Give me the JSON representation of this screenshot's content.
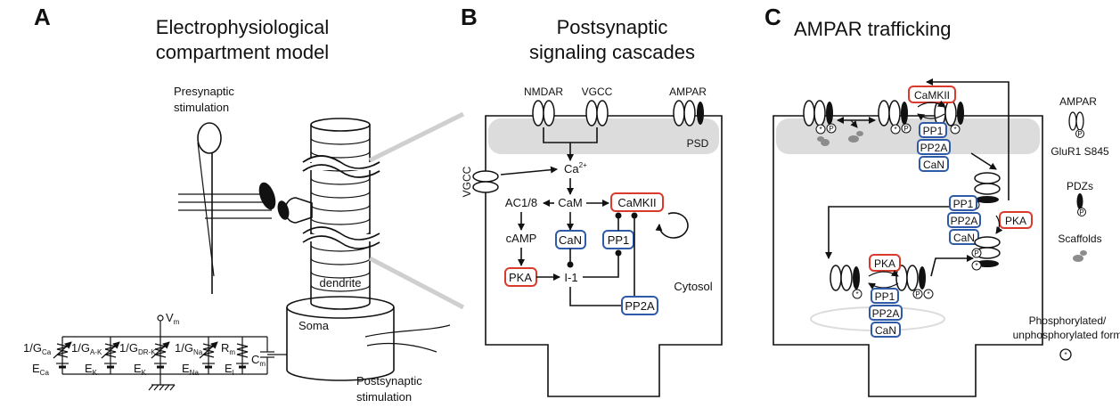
{
  "panels": {
    "a": {
      "letter": "A",
      "title_line1": "Electrophysiological",
      "title_line2": "compartment model",
      "presyn_line1": "Presynaptic",
      "presyn_line2": "stimulation",
      "vm": "V",
      "vm_sub": "m",
      "dendrite": "dendrite",
      "soma": "Soma",
      "postsyn_line1": "Postsynaptic",
      "postsyn_line2": "stimulation",
      "circuit": {
        "g1": "1/G",
        "g1_sub": "Ca",
        "g2": "1/G",
        "g2_sub": "A-K",
        "g3": "1/G",
        "g3_sub": "DR-K",
        "g4": "1/G",
        "g4_sub": "Na",
        "rm": "R",
        "rm_sub": "m",
        "cm": "C",
        "cm_sub": "m",
        "e1": "E",
        "e1_sub": "Ca",
        "e2": "E",
        "e2_sub": "K",
        "e3": "E",
        "e3_sub": "K",
        "e4": "E",
        "e4_sub": "Na",
        "el": "E",
        "el_sub": "l"
      }
    },
    "b": {
      "letter": "B",
      "title_line1": "Postsynaptic",
      "title_line2": "signaling cascades",
      "nmdar": "NMDAR",
      "vgcc_top": "VGCC",
      "ampar": "AMPAR",
      "psd": "PSD",
      "vgcc_side": "VGCC",
      "ca": "Ca",
      "ca_sup": "2+",
      "ac": "AC1/8",
      "cam": "CaM",
      "camkii": "CaMKII",
      "camp": "cAMP",
      "can": "CaN",
      "pp1": "PP1",
      "pka": "PKA",
      "i1": "I-1",
      "pp2a": "PP2A",
      "cytosol": "Cytosol"
    },
    "c": {
      "letter": "C",
      "title": "AMPAR trafficking",
      "camkii": "CaMKII",
      "pp1": "PP1",
      "pp2a": "PP2A",
      "can": "CaN",
      "pka": "PKA",
      "p": "P",
      "legend": {
        "ampar": "AMPAR",
        "glur1": "GluR1 S845",
        "pdzs": "PDZs",
        "scaffolds": "Scaffolds",
        "phospho_line1": "Phosphorylated/",
        "phospho_line2": "unphosphorylated form"
      }
    }
  },
  "colors": {
    "red_box": "#d93a2b",
    "blue_box": "#2f5aa8",
    "psd_band": "#dcdcdc",
    "scaffold": "#8c8c8c"
  }
}
